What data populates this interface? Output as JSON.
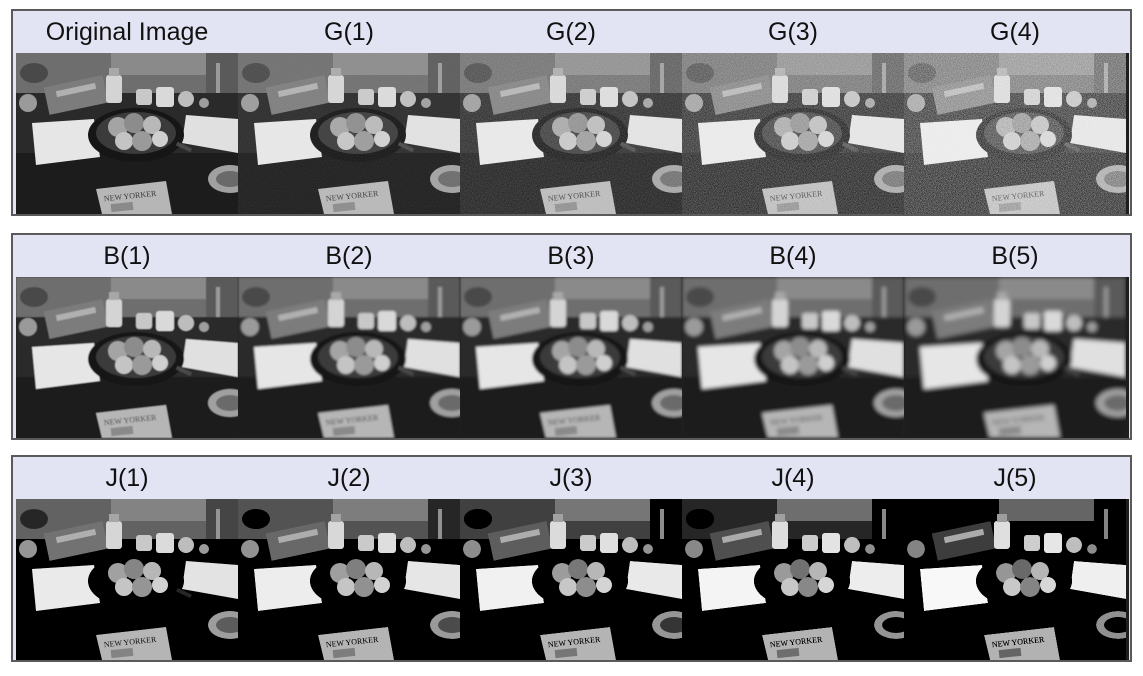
{
  "rows": [
    {
      "labels": [
        "Original Image",
        "G(1)",
        "G(2)",
        "G(3)",
        "G(4)"
      ],
      "noise": [
        0,
        0.15,
        0.35,
        0.55,
        0.75
      ],
      "blur": [
        0,
        0,
        0,
        0,
        0
      ],
      "contrast": [
        1,
        1,
        1,
        1,
        1
      ]
    },
    {
      "labels": [
        "B(1)",
        "B(2)",
        "B(3)",
        "B(4)",
        "B(5)"
      ],
      "noise": [
        0,
        0,
        0,
        0,
        0
      ],
      "blur": [
        0.6,
        1.0,
        1.4,
        1.8,
        2.2
      ],
      "contrast": [
        1,
        1,
        1,
        1,
        1
      ]
    },
    {
      "labels": [
        "J(1)",
        "J(2)",
        "J(3)",
        "J(4)",
        "J(5)"
      ],
      "noise": [
        0,
        0,
        0,
        0,
        0
      ],
      "blur": [
        0,
        0,
        0,
        0,
        0
      ],
      "contrast": [
        1.1,
        1.2,
        1.3,
        1.4,
        1.5
      ]
    }
  ],
  "scene": {
    "description_icon": "kitchen-table-photo",
    "newspaper_text": "NEW YORKER"
  }
}
